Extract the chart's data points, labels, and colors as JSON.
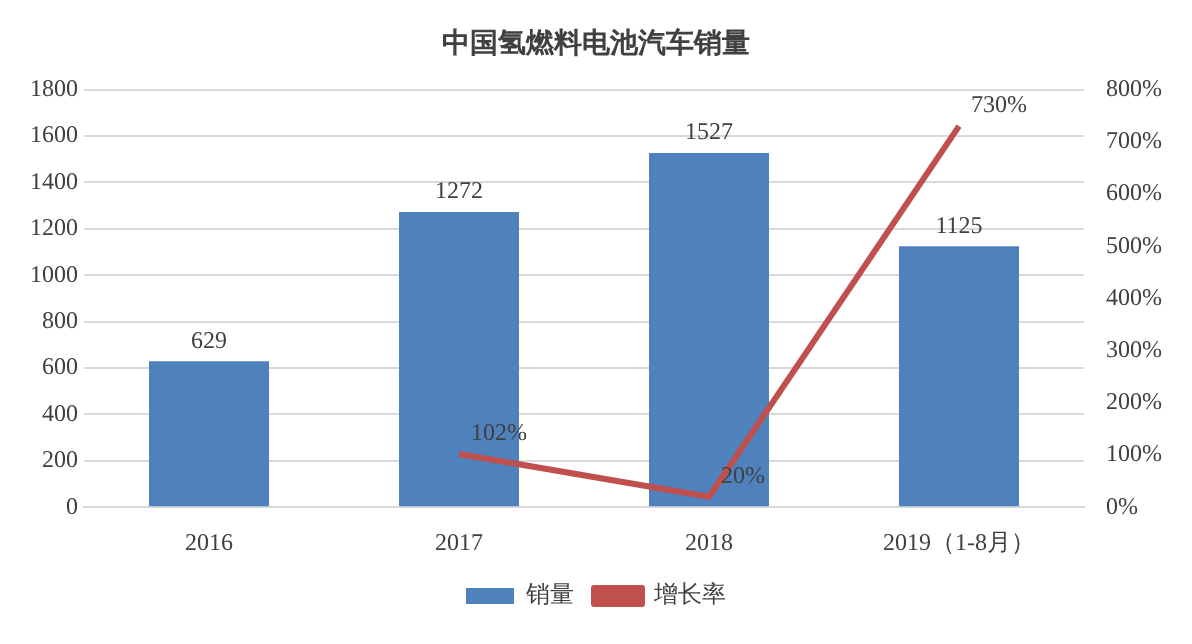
{
  "chart_data": {
    "type": "bar",
    "title": "中国氢燃料电池汽车销量",
    "categories": [
      "2016",
      "2017",
      "2018",
      "2019（1-8月）"
    ],
    "series": [
      {
        "name": "销量",
        "color": "#4f81bd",
        "values": [
          629,
          1272,
          1527,
          1125
        ],
        "value_labels": [
          "629",
          "1272",
          "1527",
          "1125"
        ]
      },
      {
        "name": "增长率",
        "type": "line",
        "axis": "y2",
        "color": "#c0504d",
        "values": [
          null,
          102,
          20,
          730
        ],
        "value_labels": [
          null,
          "102%",
          "20%",
          "730%"
        ]
      }
    ],
    "ylim": [
      0,
      1800
    ],
    "yticks": [
      0,
      200,
      400,
      600,
      800,
      1000,
      1200,
      1400,
      1600,
      1800
    ],
    "y2lim": [
      0,
      800
    ],
    "y2ticks": [
      {
        "value": 0,
        "label": "0%"
      },
      {
        "value": 100,
        "label": "100%"
      },
      {
        "value": 200,
        "label": "200%"
      },
      {
        "value": 300,
        "label": "300%"
      },
      {
        "value": 400,
        "label": "400%"
      },
      {
        "value": 500,
        "label": "500%"
      },
      {
        "value": 600,
        "label": "600%"
      },
      {
        "value": 700,
        "label": "700%"
      },
      {
        "value": 800,
        "label": "800%"
      }
    ],
    "grid": "y",
    "legend": "bottom",
    "marker": "none"
  }
}
